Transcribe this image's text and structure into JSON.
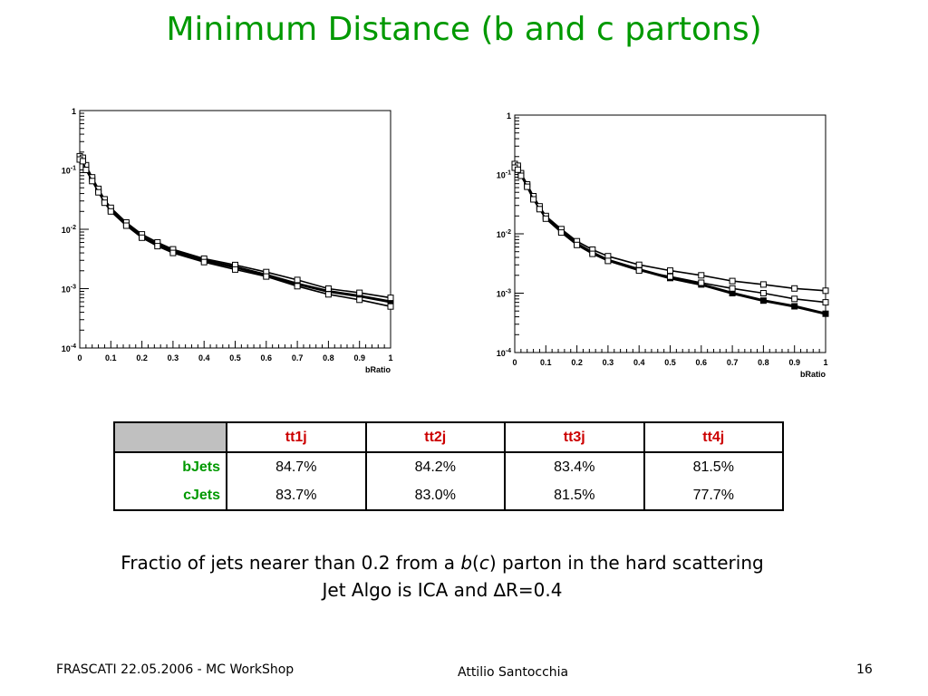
{
  "slide": {
    "title": "Minimum Distance (b and c partons)",
    "caption_line1_pre": "Fractio of jets nearer than 0.2 from a ",
    "caption_b": "b",
    "caption_paren_open": "(",
    "caption_c": "c",
    "caption_line1_post": ") parton in the hard scattering",
    "caption_line2": "Jet Algo is ICA and ∆R=0.4",
    "footer_left": "FRASCATI 22.05.2006 - MC WorkShop",
    "footer_center": "Attilio Santocchia",
    "footer_right": "16"
  },
  "table": {
    "columns": [
      "tt1j",
      "tt2j",
      "tt3j",
      "tt4j"
    ],
    "rows": [
      {
        "label": "bJets",
        "values": [
          "84.7%",
          "84.2%",
          "83.4%",
          "81.5%"
        ]
      },
      {
        "label": "cJets",
        "values": [
          "83.7%",
          "83.0%",
          "81.5%",
          "77.7%"
        ]
      }
    ]
  },
  "chart_data": [
    {
      "type": "line",
      "xlabel": "bRatio",
      "x_ticks": [
        "0",
        "0.1",
        "0.2",
        "0.3",
        "0.4",
        "0.5",
        "0.6",
        "0.7",
        "0.8",
        "0.9",
        "1"
      ],
      "y_scale": "log",
      "y_ticks": [
        "10-4",
        "10-3",
        "10-2",
        "10-1",
        "1"
      ],
      "xlim": [
        0,
        1
      ],
      "ylim": [
        0.0001,
        1
      ],
      "series": [
        {
          "values": [
            [
              0.0,
              0.16
            ],
            [
              0.01,
              0.15
            ],
            [
              0.02,
              0.11
            ],
            [
              0.04,
              0.07
            ],
            [
              0.06,
              0.045
            ],
            [
              0.08,
              0.03
            ],
            [
              0.1,
              0.021
            ],
            [
              0.15,
              0.012
            ],
            [
              0.2,
              0.0075
            ],
            [
              0.25,
              0.0055
            ],
            [
              0.3,
              0.0043
            ],
            [
              0.4,
              0.003
            ],
            [
              0.5,
              0.0023
            ],
            [
              0.6,
              0.0017
            ],
            [
              0.7,
              0.0012
            ],
            [
              0.8,
              0.0009
            ],
            [
              0.9,
              0.00075
            ],
            [
              1.0,
              0.0006
            ]
          ]
        },
        {
          "values": [
            [
              0.0,
              0.17
            ],
            [
              0.01,
              0.16
            ],
            [
              0.02,
              0.12
            ],
            [
              0.04,
              0.075
            ],
            [
              0.06,
              0.048
            ],
            [
              0.08,
              0.032
            ],
            [
              0.1,
              0.023
            ],
            [
              0.15,
              0.013
            ],
            [
              0.2,
              0.0082
            ],
            [
              0.25,
              0.006
            ],
            [
              0.3,
              0.0046
            ],
            [
              0.4,
              0.0032
            ],
            [
              0.5,
              0.0025
            ],
            [
              0.6,
              0.0019
            ],
            [
              0.7,
              0.0014
            ],
            [
              0.8,
              0.001
            ],
            [
              0.9,
              0.00085
            ],
            [
              1.0,
              0.0007
            ]
          ]
        },
        {
          "values": [
            [
              0.0,
              0.15
            ],
            [
              0.01,
              0.14
            ],
            [
              0.02,
              0.1
            ],
            [
              0.04,
              0.065
            ],
            [
              0.06,
              0.042
            ],
            [
              0.08,
              0.028
            ],
            [
              0.1,
              0.02
            ],
            [
              0.15,
              0.0115
            ],
            [
              0.2,
              0.0072
            ],
            [
              0.25,
              0.0052
            ],
            [
              0.3,
              0.004
            ],
            [
              0.4,
              0.0028
            ],
            [
              0.5,
              0.0021
            ],
            [
              0.6,
              0.0016
            ],
            [
              0.7,
              0.0011
            ],
            [
              0.8,
              0.0008
            ],
            [
              0.9,
              0.00065
            ],
            [
              1.0,
              0.0005
            ]
          ]
        }
      ]
    },
    {
      "type": "line",
      "xlabel": "bRatio",
      "x_ticks": [
        "0",
        "0.1",
        "0.2",
        "0.3",
        "0.4",
        "0.5",
        "0.6",
        "0.7",
        "0.8",
        "0.9",
        "1"
      ],
      "y_scale": "log",
      "y_ticks": [
        "10-4",
        "10-3",
        "10-2",
        "10-1",
        "1"
      ],
      "xlim": [
        0,
        1
      ],
      "ylim": [
        0.0001,
        1
      ],
      "series": [
        {
          "values": [
            [
              0.0,
              0.14
            ],
            [
              0.01,
              0.13
            ],
            [
              0.02,
              0.1
            ],
            [
              0.04,
              0.065
            ],
            [
              0.06,
              0.04
            ],
            [
              0.08,
              0.027
            ],
            [
              0.1,
              0.019
            ],
            [
              0.15,
              0.011
            ],
            [
              0.2,
              0.0068
            ],
            [
              0.25,
              0.0048
            ],
            [
              0.3,
              0.0036
            ],
            [
              0.4,
              0.0025
            ],
            [
              0.5,
              0.0018
            ],
            [
              0.6,
              0.0014
            ],
            [
              0.7,
              0.001
            ],
            [
              0.8,
              0.00075
            ],
            [
              0.9,
              0.0006
            ],
            [
              1.0,
              0.00045
            ]
          ]
        },
        {
          "values": [
            [
              0.0,
              0.15
            ],
            [
              0.01,
              0.14
            ],
            [
              0.02,
              0.105
            ],
            [
              0.04,
              0.068
            ],
            [
              0.06,
              0.043
            ],
            [
              0.08,
              0.029
            ],
            [
              0.1,
              0.02
            ],
            [
              0.15,
              0.012
            ],
            [
              0.2,
              0.0075
            ],
            [
              0.25,
              0.0054
            ],
            [
              0.3,
              0.0042
            ],
            [
              0.4,
              0.003
            ],
            [
              0.5,
              0.0024
            ],
            [
              0.6,
              0.002
            ],
            [
              0.7,
              0.0016
            ],
            [
              0.8,
              0.0014
            ],
            [
              0.9,
              0.0012
            ],
            [
              1.0,
              0.0011
            ]
          ]
        },
        {
          "values": [
            [
              0.0,
              0.13
            ],
            [
              0.01,
              0.12
            ],
            [
              0.02,
              0.095
            ],
            [
              0.04,
              0.062
            ],
            [
              0.06,
              0.038
            ],
            [
              0.08,
              0.026
            ],
            [
              0.1,
              0.018
            ],
            [
              0.15,
              0.0105
            ],
            [
              0.2,
              0.0065
            ],
            [
              0.25,
              0.0046
            ],
            [
              0.3,
              0.0035
            ],
            [
              0.4,
              0.0024
            ],
            [
              0.5,
              0.0019
            ],
            [
              0.6,
              0.0015
            ],
            [
              0.7,
              0.0012
            ],
            [
              0.8,
              0.001
            ],
            [
              0.9,
              0.0008
            ],
            [
              1.0,
              0.0007
            ]
          ]
        }
      ]
    }
  ]
}
